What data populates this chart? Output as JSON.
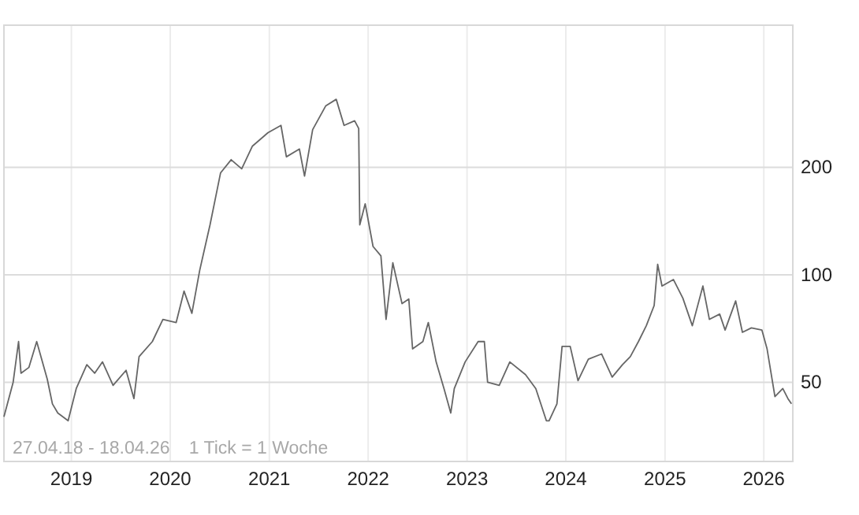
{
  "chart_data": {
    "type": "line",
    "log": "y",
    "grid": true,
    "marker": "none",
    "line_style": "solid",
    "xlim": [
      "2018-04-27",
      "2026-04-18"
    ],
    "xticks": [
      {
        "value": "2019-01-01",
        "label": "2019"
      },
      {
        "value": "2020-01-01",
        "label": "2020"
      },
      {
        "value": "2021-01-01",
        "label": "2021"
      },
      {
        "value": "2022-01-01",
        "label": "2022"
      },
      {
        "value": "2023-01-01",
        "label": "2023"
      },
      {
        "value": "2024-01-01",
        "label": "2024"
      },
      {
        "value": "2025-01-01",
        "label": "2025"
      },
      {
        "value": "2026-01-01",
        "label": "2026"
      }
    ],
    "ylim": [
      30,
      500
    ],
    "yticks": [
      50,
      100,
      200
    ],
    "annotations": [
      "27.04.18 - 18.04.26",
      "1 Tick = 1 Woche"
    ],
    "series": [
      {
        "color": "#666666",
        "x": [
          "2018-04-27",
          "2018-05-31",
          "2018-06-20",
          "2018-06-29",
          "2018-07-28",
          "2018-08-26",
          "2018-10-04",
          "2018-10-23",
          "2018-11-12",
          "2018-12-20",
          "2019-01-19",
          "2019-02-27",
          "2019-03-28",
          "2019-04-26",
          "2019-06-04",
          "2019-07-22",
          "2019-08-20",
          "2019-09-08",
          "2019-10-27",
          "2019-12-05",
          "2020-01-23",
          "2020-02-21",
          "2020-03-21",
          "2020-04-19",
          "2020-05-27",
          "2020-07-05",
          "2020-08-13",
          "2020-09-21",
          "2020-10-30",
          "2020-12-27",
          "2021-02-13",
          "2021-03-05",
          "2021-04-22",
          "2021-05-11",
          "2021-06-10",
          "2021-07-28",
          "2021-09-05",
          "2021-10-04",
          "2021-11-12",
          "2021-11-27",
          "2021-12-01",
          "2021-12-21",
          "2022-01-19",
          "2022-02-17",
          "2022-03-08",
          "2022-04-02",
          "2022-05-06",
          "2022-05-31",
          "2022-06-14",
          "2022-07-22",
          "2022-08-11",
          "2022-09-09",
          "2022-10-08",
          "2022-11-02",
          "2022-11-15",
          "2022-12-25",
          "2023-02-11",
          "2023-03-06",
          "2023-03-18",
          "2023-04-30",
          "2023-06-08",
          "2023-08-05",
          "2023-09-12",
          "2023-10-21",
          "2023-10-31",
          "2023-11-29",
          "2023-12-18",
          "2024-01-17",
          "2024-02-15",
          "2024-03-24",
          "2024-05-12",
          "2024-06-20",
          "2024-07-28",
          "2024-08-26",
          "2024-09-25",
          "2024-10-24",
          "2024-11-22",
          "2024-12-05",
          "2024-12-21",
          "2025-02-01",
          "2025-03-08",
          "2025-04-12",
          "2025-05-21",
          "2025-06-14",
          "2025-07-22",
          "2025-08-11",
          "2025-09-19",
          "2025-10-14",
          "2025-11-16",
          "2025-12-25",
          "2026-01-13",
          "2026-02-11",
          "2026-03-12",
          "2026-03-31",
          "2026-04-13"
        ],
        "values": [
          40,
          50,
          65,
          53,
          55,
          65,
          51,
          43.5,
          41,
          39,
          48,
          56,
          53,
          57,
          49,
          54,
          45,
          59,
          65,
          75,
          73.5,
          90,
          78,
          103,
          138,
          193,
          210,
          198,
          229,
          250,
          262,
          214,
          225,
          189,
          255,
          297,
          310,
          262,
          270,
          257,
          138,
          158,
          120,
          113,
          75,
          108,
          83,
          85.5,
          62,
          65,
          73.5,
          57,
          48,
          41,
          48,
          57,
          65,
          65,
          50,
          49,
          57,
          52.5,
          48,
          39,
          39,
          43.5,
          63,
          63,
          50.5,
          58,
          60,
          51.7,
          56,
          59,
          65,
          72,
          82,
          107,
          93,
          97,
          86,
          72,
          93,
          75,
          77.6,
          70,
          84.5,
          69,
          71,
          70,
          62,
          45.6,
          48,
          45,
          43.5
        ]
      }
    ]
  }
}
